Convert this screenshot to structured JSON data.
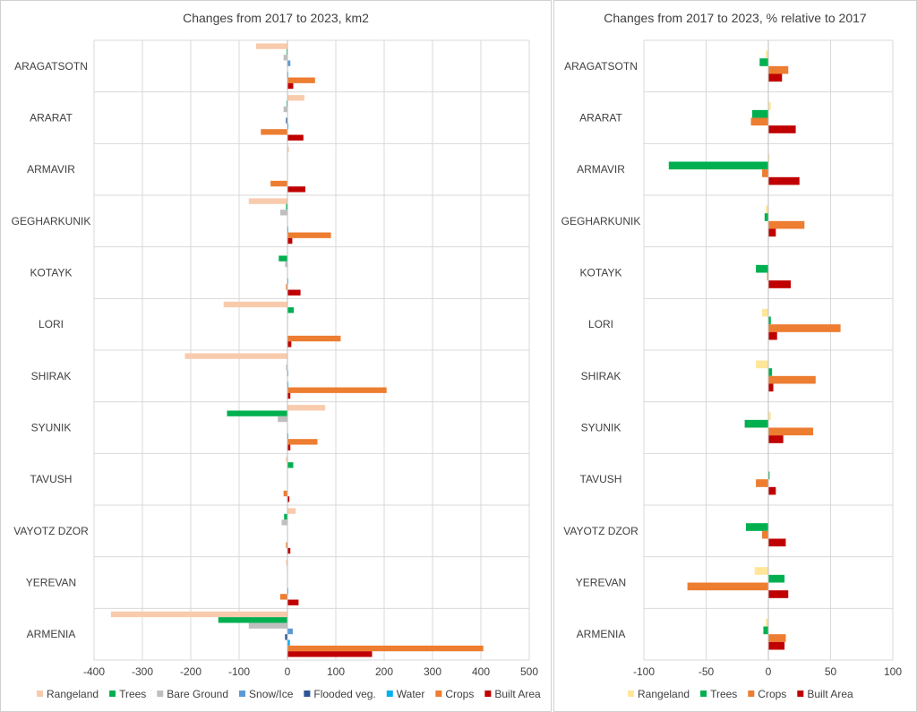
{
  "chart_data": [
    {
      "type": "bar",
      "orientation": "horizontal",
      "title": "Changes from 2017 to 2023, km2",
      "categories": [
        "ARAGATSOTN",
        "ARARAT",
        "ARMAVIR",
        "GEGHARKUNIK",
        "KOTAYK",
        "LORI",
        "SHIRAK",
        "SYUNIK",
        "TAVUSH",
        "VAYOTZ DZOR",
        "YEREVAN",
        "ARMENIA"
      ],
      "xlim": [
        -400,
        500
      ],
      "xticks": [
        "-400",
        "-300",
        "-200",
        "-100",
        "0",
        "100",
        "200",
        "300",
        "400",
        "500"
      ],
      "grid": true,
      "legend_position": "bottom",
      "series": [
        {
          "name": "Rangeland",
          "color": "#f8cbad",
          "values": [
            -65,
            35,
            3,
            -80,
            0,
            -132,
            -212,
            78,
            -3,
            17,
            -3,
            -365
          ]
        },
        {
          "name": "Trees",
          "color": "#00b050",
          "values": [
            -2,
            -2,
            -1,
            -3,
            -18,
            13,
            -1,
            -125,
            12,
            -7,
            -1,
            -143
          ]
        },
        {
          "name": "Bare Ground",
          "color": "#bfbfbf",
          "values": [
            -8,
            -8,
            -1,
            -15,
            -5,
            0,
            -3,
            -20,
            0,
            -12,
            0,
            -80
          ]
        },
        {
          "name": "Snow/Ice",
          "color": "#5b9bd5",
          "values": [
            6,
            0,
            0,
            0,
            0,
            0,
            1,
            0,
            0,
            0,
            0,
            11
          ]
        },
        {
          "name": "Flooded veg.",
          "color": "#2e5596",
          "values": [
            0,
            -3,
            0,
            0,
            0,
            0,
            0,
            0,
            0,
            0,
            0,
            -5
          ]
        },
        {
          "name": "Water",
          "color": "#00b0f0",
          "values": [
            1,
            2,
            0,
            1,
            1,
            0,
            2,
            1,
            0,
            0,
            1,
            5
          ]
        },
        {
          "name": "Crops",
          "color": "#ed7d31",
          "values": [
            57,
            -55,
            -35,
            90,
            -3,
            110,
            205,
            62,
            -8,
            -3,
            -15,
            405
          ]
        },
        {
          "name": "Built Area",
          "color": "#c00000",
          "values": [
            12,
            33,
            37,
            10,
            27,
            8,
            6,
            6,
            4,
            6,
            23,
            175
          ]
        }
      ]
    },
    {
      "type": "bar",
      "orientation": "horizontal",
      "title": "Changes from 2017 to 2023, % relative to 2017",
      "categories": [
        "ARAGATSOTN",
        "ARARAT",
        "ARMAVIR",
        "GEGHARKUNIK",
        "KOTAYK",
        "LORI",
        "SHIRAK",
        "SYUNIK",
        "TAVUSH",
        "VAYOTZ DZOR",
        "YEREVAN",
        "ARMENIA"
      ],
      "xlim": [
        -100,
        100
      ],
      "xticks": [
        "-100",
        "-50",
        "0",
        "50",
        "100"
      ],
      "grid": true,
      "legend_position": "bottom",
      "series": [
        {
          "name": "Rangeland",
          "color": "#ffe699",
          "values": [
            -2,
            2,
            1,
            -2,
            0,
            -5,
            -10,
            2,
            0,
            0,
            -11,
            -2
          ]
        },
        {
          "name": "Trees",
          "color": "#00b050",
          "values": [
            -7,
            -13,
            -80,
            -3,
            -10,
            2,
            3,
            -19,
            1,
            -18,
            13,
            -4
          ]
        },
        {
          "name": "Crops",
          "color": "#ed7d31",
          "values": [
            16,
            -14,
            -5,
            29,
            -1,
            58,
            38,
            36,
            -10,
            -5,
            -65,
            14
          ]
        },
        {
          "name": "Built Area",
          "color": "#c00000",
          "values": [
            11,
            22,
            25,
            6,
            18,
            7,
            4,
            12,
            6,
            14,
            16,
            13
          ]
        }
      ]
    }
  ]
}
